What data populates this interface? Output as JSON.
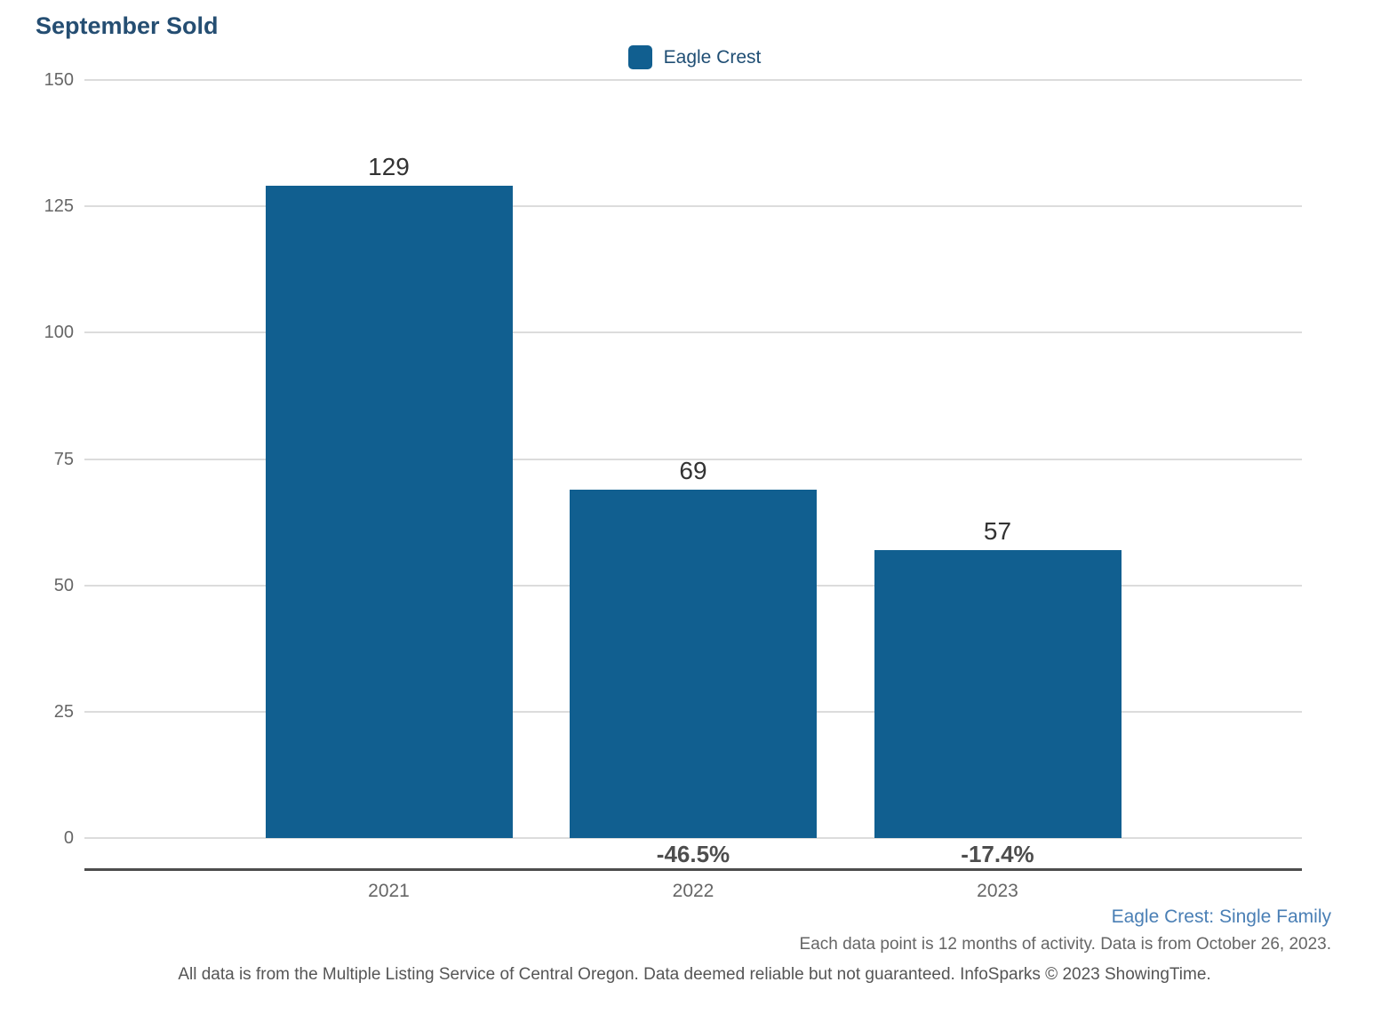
{
  "title": "September Sold",
  "legend": {
    "label": "Eagle Crest",
    "swatch_color": "#115F90"
  },
  "chart_data": {
    "type": "bar",
    "title": "September Sold",
    "series_name": "Eagle Crest",
    "categories": [
      "2021",
      "2022",
      "2023"
    ],
    "values": [
      129,
      69,
      57
    ],
    "pct_change_labels": [
      "",
      "-46.5%",
      "-17.4%"
    ],
    "xlabel": "",
    "ylabel": "",
    "ylim": [
      0,
      150
    ],
    "yticks": [
      0,
      25,
      50,
      75,
      100,
      125,
      150
    ],
    "grid": true,
    "legend_position": "top-center",
    "bar_color": "#115F90"
  },
  "footer": {
    "scope": "Eagle Crest: Single Family",
    "note": "Each data point is 12 months of activity. Data is from October 26, 2023.",
    "disclaimer": "All data is from the Multiple Listing Service of Central Oregon. Data deemed reliable but not guaranteed. InfoSparks © 2023 ShowingTime."
  },
  "colors": {
    "title_text": "#254E72",
    "bar": "#115F90",
    "grid_line": "#DCDCDC",
    "axis_line": "#4D4D4D",
    "tick_label": "#666666",
    "value_label": "#333333",
    "pct_label": "#4D4D4D",
    "scope_text": "#4A7FB5"
  }
}
